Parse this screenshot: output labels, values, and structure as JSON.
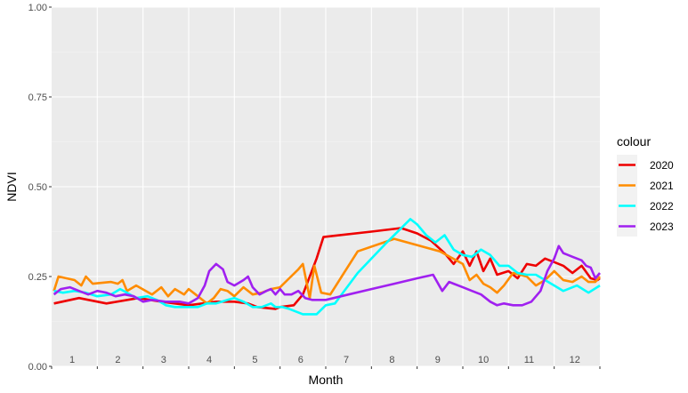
{
  "chart_data": {
    "type": "line",
    "xlabel": "Month",
    "ylabel": "NDVI",
    "xlim": [
      0,
      12
    ],
    "ylim": [
      0,
      1
    ],
    "grid": true,
    "legend_title": "colour",
    "legend_position": "right",
    "month_labels": [
      "1",
      "2",
      "3",
      "4",
      "5",
      "6",
      "7",
      "8",
      "9",
      "10",
      "11",
      "12"
    ],
    "y_ticks": [
      0,
      0.25,
      0.5,
      0.75,
      1
    ],
    "y_tick_labels": [
      "0.00",
      "0.25",
      "0.50",
      "0.75",
      "1.00"
    ],
    "series": [
      {
        "name": "2020",
        "color": "#ee0000",
        "points": [
          [
            0.05,
            0.175
          ],
          [
            0.6,
            0.19
          ],
          [
            1.2,
            0.175
          ],
          [
            1.9,
            0.19
          ],
          [
            2.4,
            0.18
          ],
          [
            3.0,
            0.17
          ],
          [
            3.6,
            0.18
          ],
          [
            4.0,
            0.18
          ],
          [
            4.3,
            0.175
          ],
          [
            4.5,
            0.165
          ],
          [
            4.9,
            0.16
          ],
          [
            5.0,
            0.165
          ],
          [
            5.3,
            0.17
          ],
          [
            5.5,
            0.2
          ],
          [
            5.8,
            0.3
          ],
          [
            5.95,
            0.36
          ],
          [
            7.0,
            0.375
          ],
          [
            7.65,
            0.385
          ],
          [
            8.0,
            0.37
          ],
          [
            8.3,
            0.35
          ],
          [
            8.6,
            0.315
          ],
          [
            8.8,
            0.285
          ],
          [
            9.0,
            0.32
          ],
          [
            9.15,
            0.28
          ],
          [
            9.3,
            0.32
          ],
          [
            9.45,
            0.265
          ],
          [
            9.6,
            0.3
          ],
          [
            9.75,
            0.255
          ],
          [
            10.0,
            0.265
          ],
          [
            10.2,
            0.245
          ],
          [
            10.4,
            0.285
          ],
          [
            10.6,
            0.28
          ],
          [
            10.8,
            0.3
          ],
          [
            11.0,
            0.29
          ],
          [
            11.2,
            0.28
          ],
          [
            11.4,
            0.26
          ],
          [
            11.6,
            0.28
          ],
          [
            11.8,
            0.245
          ],
          [
            11.95,
            0.24
          ],
          [
            12.0,
            0.245
          ]
        ]
      },
      {
        "name": "2021",
        "color": "#ff8c00",
        "points": [
          [
            0.05,
            0.21
          ],
          [
            0.15,
            0.25
          ],
          [
            0.5,
            0.24
          ],
          [
            0.65,
            0.225
          ],
          [
            0.75,
            0.25
          ],
          [
            0.9,
            0.23
          ],
          [
            1.3,
            0.235
          ],
          [
            1.45,
            0.23
          ],
          [
            1.55,
            0.24
          ],
          [
            1.65,
            0.21
          ],
          [
            1.85,
            0.225
          ],
          [
            2.2,
            0.2
          ],
          [
            2.4,
            0.22
          ],
          [
            2.55,
            0.195
          ],
          [
            2.7,
            0.215
          ],
          [
            2.9,
            0.2
          ],
          [
            3.0,
            0.215
          ],
          [
            3.2,
            0.195
          ],
          [
            3.4,
            0.175
          ],
          [
            3.55,
            0.19
          ],
          [
            3.7,
            0.215
          ],
          [
            3.85,
            0.21
          ],
          [
            4.0,
            0.195
          ],
          [
            4.2,
            0.22
          ],
          [
            4.4,
            0.2
          ],
          [
            4.6,
            0.205
          ],
          [
            4.8,
            0.215
          ],
          [
            5.0,
            0.22
          ],
          [
            5.2,
            0.245
          ],
          [
            5.4,
            0.27
          ],
          [
            5.5,
            0.285
          ],
          [
            5.65,
            0.19
          ],
          [
            5.75,
            0.28
          ],
          [
            5.9,
            0.205
          ],
          [
            6.1,
            0.2
          ],
          [
            6.7,
            0.32
          ],
          [
            7.5,
            0.355
          ],
          [
            8.5,
            0.32
          ],
          [
            9.0,
            0.285
          ],
          [
            9.15,
            0.24
          ],
          [
            9.3,
            0.255
          ],
          [
            9.45,
            0.23
          ],
          [
            9.6,
            0.22
          ],
          [
            9.75,
            0.205
          ],
          [
            9.9,
            0.225
          ],
          [
            10.1,
            0.26
          ],
          [
            10.4,
            0.25
          ],
          [
            10.6,
            0.225
          ],
          [
            10.8,
            0.24
          ],
          [
            11.0,
            0.265
          ],
          [
            11.2,
            0.24
          ],
          [
            11.4,
            0.235
          ],
          [
            11.6,
            0.25
          ],
          [
            11.75,
            0.235
          ],
          [
            11.9,
            0.235
          ],
          [
            12.0,
            0.25
          ]
        ]
      },
      {
        "name": "2022",
        "color": "#00ffff",
        "points": [
          [
            0.05,
            0.21
          ],
          [
            0.25,
            0.205
          ],
          [
            0.5,
            0.21
          ],
          [
            0.75,
            0.205
          ],
          [
            1.0,
            0.195
          ],
          [
            1.3,
            0.2
          ],
          [
            1.5,
            0.215
          ],
          [
            1.65,
            0.205
          ],
          [
            1.85,
            0.19
          ],
          [
            2.1,
            0.195
          ],
          [
            2.3,
            0.185
          ],
          [
            2.5,
            0.17
          ],
          [
            2.7,
            0.165
          ],
          [
            3.0,
            0.165
          ],
          [
            3.2,
            0.165
          ],
          [
            3.4,
            0.175
          ],
          [
            3.6,
            0.175
          ],
          [
            3.85,
            0.185
          ],
          [
            4.0,
            0.19
          ],
          [
            4.2,
            0.18
          ],
          [
            4.4,
            0.165
          ],
          [
            4.6,
            0.165
          ],
          [
            4.8,
            0.175
          ],
          [
            4.9,
            0.165
          ],
          [
            5.05,
            0.165
          ],
          [
            5.2,
            0.16
          ],
          [
            5.5,
            0.145
          ],
          [
            5.8,
            0.145
          ],
          [
            6.0,
            0.17
          ],
          [
            6.2,
            0.175
          ],
          [
            6.7,
            0.26
          ],
          [
            7.3,
            0.34
          ],
          [
            7.85,
            0.41
          ],
          [
            8.0,
            0.395
          ],
          [
            8.2,
            0.365
          ],
          [
            8.4,
            0.345
          ],
          [
            8.6,
            0.365
          ],
          [
            8.8,
            0.325
          ],
          [
            9.0,
            0.31
          ],
          [
            9.2,
            0.305
          ],
          [
            9.4,
            0.325
          ],
          [
            9.6,
            0.31
          ],
          [
            9.8,
            0.28
          ],
          [
            10.0,
            0.28
          ],
          [
            10.2,
            0.26
          ],
          [
            10.4,
            0.255
          ],
          [
            10.6,
            0.255
          ],
          [
            10.8,
            0.24
          ],
          [
            11.0,
            0.225
          ],
          [
            11.2,
            0.21
          ],
          [
            11.5,
            0.225
          ],
          [
            11.75,
            0.205
          ],
          [
            12.0,
            0.225
          ]
        ]
      },
      {
        "name": "2023",
        "color": "#a020f0",
        "points": [
          [
            0.05,
            0.2
          ],
          [
            0.2,
            0.215
          ],
          [
            0.4,
            0.22
          ],
          [
            0.6,
            0.21
          ],
          [
            0.8,
            0.2
          ],
          [
            1.0,
            0.21
          ],
          [
            1.2,
            0.205
          ],
          [
            1.4,
            0.195
          ],
          [
            1.6,
            0.2
          ],
          [
            1.8,
            0.195
          ],
          [
            2.0,
            0.18
          ],
          [
            2.2,
            0.185
          ],
          [
            2.5,
            0.18
          ],
          [
            2.8,
            0.18
          ],
          [
            3.0,
            0.175
          ],
          [
            3.2,
            0.19
          ],
          [
            3.35,
            0.225
          ],
          [
            3.45,
            0.265
          ],
          [
            3.6,
            0.285
          ],
          [
            3.75,
            0.27
          ],
          [
            3.85,
            0.235
          ],
          [
            4.0,
            0.225
          ],
          [
            4.2,
            0.24
          ],
          [
            4.3,
            0.25
          ],
          [
            4.4,
            0.22
          ],
          [
            4.55,
            0.2
          ],
          [
            4.7,
            0.21
          ],
          [
            4.8,
            0.215
          ],
          [
            4.9,
            0.2
          ],
          [
            5.0,
            0.215
          ],
          [
            5.1,
            0.2
          ],
          [
            5.25,
            0.2
          ],
          [
            5.4,
            0.21
          ],
          [
            5.55,
            0.19
          ],
          [
            5.7,
            0.185
          ],
          [
            6.0,
            0.185
          ],
          [
            6.5,
            0.2
          ],
          [
            7.0,
            0.215
          ],
          [
            7.5,
            0.23
          ],
          [
            8.0,
            0.245
          ],
          [
            8.35,
            0.255
          ],
          [
            8.55,
            0.21
          ],
          [
            8.7,
            0.235
          ],
          [
            9.0,
            0.22
          ],
          [
            9.2,
            0.21
          ],
          [
            9.4,
            0.2
          ],
          [
            9.6,
            0.18
          ],
          [
            9.75,
            0.17
          ],
          [
            9.9,
            0.175
          ],
          [
            10.1,
            0.17
          ],
          [
            10.3,
            0.17
          ],
          [
            10.5,
            0.18
          ],
          [
            10.7,
            0.21
          ],
          [
            10.85,
            0.265
          ],
          [
            11.0,
            0.3
          ],
          [
            11.1,
            0.335
          ],
          [
            11.2,
            0.315
          ],
          [
            11.4,
            0.305
          ],
          [
            11.6,
            0.295
          ],
          [
            11.7,
            0.28
          ],
          [
            11.8,
            0.275
          ],
          [
            11.9,
            0.245
          ],
          [
            12.0,
            0.26
          ]
        ]
      }
    ]
  }
}
